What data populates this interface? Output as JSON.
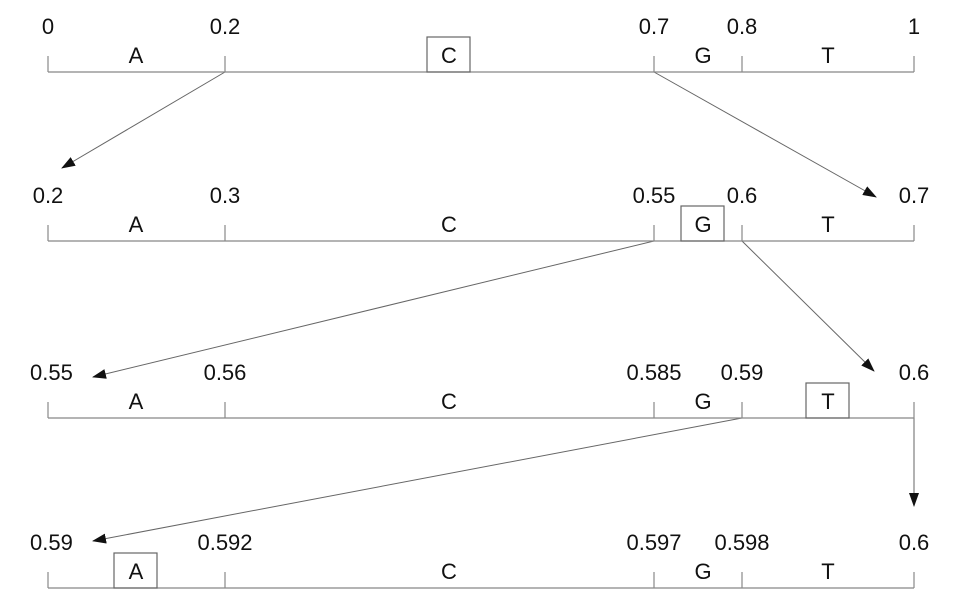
{
  "rows": [
    {
      "ticks": [
        "0",
        "0.2",
        "0.7",
        "0.8",
        "1"
      ],
      "symbols": [
        "A",
        "C",
        "G",
        "T"
      ]
    },
    {
      "ticks": [
        "0.2",
        "0.3",
        "0.55",
        "0.6",
        "0.7"
      ],
      "symbols": [
        "A",
        "C",
        "G",
        "T"
      ]
    },
    {
      "ticks": [
        "0.55",
        "0.56",
        "0.585",
        "0.59",
        "0.6"
      ],
      "symbols": [
        "A",
        "C",
        "G",
        "T"
      ]
    },
    {
      "ticks": [
        "0.59",
        "0.592",
        "0.597",
        "0.598",
        "0.6"
      ],
      "symbols": [
        "A",
        "C",
        "G",
        "T"
      ]
    }
  ]
}
